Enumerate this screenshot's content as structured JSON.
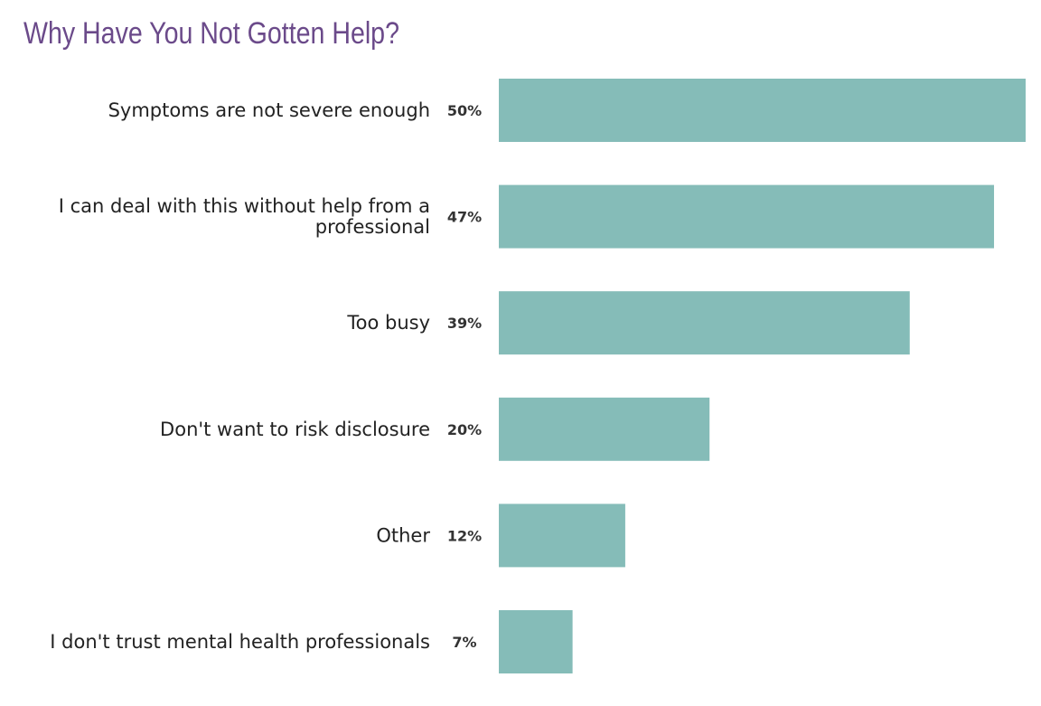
{
  "colors": {
    "title": "#6b4a8a",
    "bar": "#85bcb8"
  },
  "chart_data": {
    "type": "bar",
    "orientation": "horizontal",
    "title": "Why Have You Not Gotten Help?",
    "categories": [
      [
        "Symptoms are not severe enough"
      ],
      [
        "I can deal with this without help from a",
        "professional"
      ],
      [
        "Too busy"
      ],
      [
        "Don't want to risk disclosure"
      ],
      [
        "Other"
      ],
      [
        "I don't trust mental health professionals"
      ]
    ],
    "values": [
      50,
      47,
      39,
      20,
      12,
      7
    ],
    "value_labels": [
      "50%",
      "47%",
      "39%",
      "20%",
      "12%",
      "7%"
    ],
    "xlim": [
      0,
      50
    ],
    "axis_visible": false,
    "grid": false,
    "legend": "none"
  }
}
